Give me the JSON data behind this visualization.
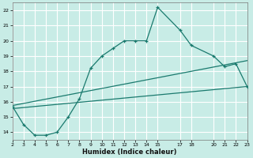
{
  "xlabel": "Humidex (Indice chaleur)",
  "background_color": "#c8ece6",
  "grid_color": "#ffffff",
  "line_color": "#1a7a6e",
  "xlim": [
    2,
    23
  ],
  "ylim": [
    13.5,
    22.5
  ],
  "xticks": [
    2,
    3,
    4,
    5,
    6,
    7,
    8,
    9,
    10,
    11,
    12,
    13,
    14,
    15,
    17,
    18,
    20,
    21,
    22,
    23
  ],
  "yticks": [
    14,
    15,
    16,
    17,
    18,
    19,
    20,
    21,
    22
  ],
  "series1_x": [
    2,
    3,
    4,
    5,
    6,
    7,
    8,
    9,
    10,
    11,
    12,
    13,
    14,
    15,
    17,
    18,
    20,
    21,
    22,
    23
  ],
  "series1_y": [
    15.7,
    14.5,
    13.8,
    13.8,
    14.0,
    15.0,
    16.2,
    18.2,
    19.0,
    19.5,
    20.0,
    20.0,
    20.0,
    22.2,
    20.7,
    19.7,
    19.0,
    18.3,
    18.5,
    17.0
  ],
  "series2_x": [
    2,
    23
  ],
  "series2_y": [
    15.55,
    17.0
  ],
  "series3_x": [
    2,
    23
  ],
  "series3_y": [
    15.75,
    18.7
  ]
}
